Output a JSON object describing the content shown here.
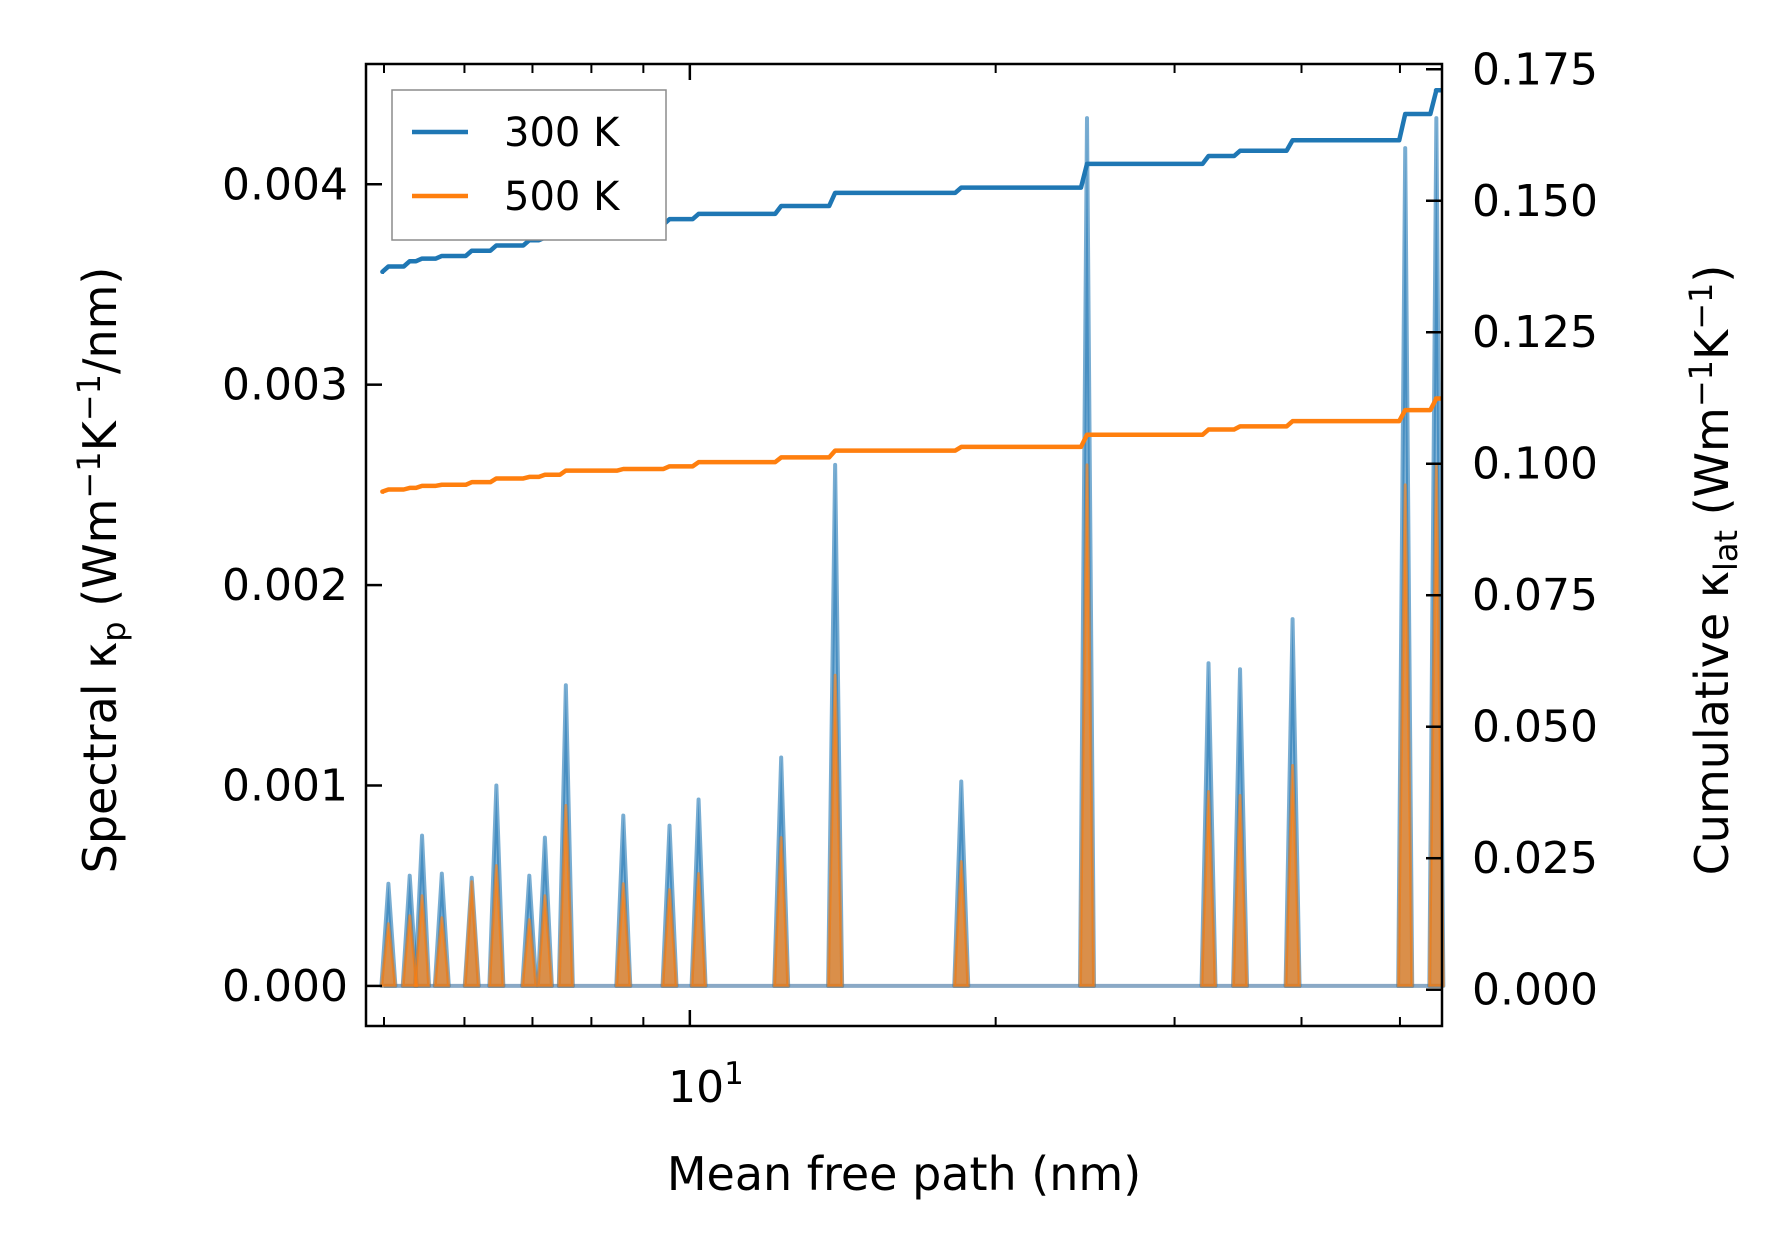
{
  "chart_data": {
    "type": "line",
    "xlabel": "Mean free path (nm)",
    "x_scale": "log",
    "xlim": [
      4.8,
      55
    ],
    "x_major_ticks": [
      10
    ],
    "x_major_tick_labels": [
      "10",
      "1"
    ],
    "ylabel_left": {
      "prefix": "Spectral κ",
      "sub": "p",
      "units": "(Wm",
      "exp1": "−1",
      "k": "K",
      "exp2": "−1",
      "tail": "/nm)"
    },
    "ylabel_right": {
      "prefix": "Cumulative κ",
      "sub": "lat",
      "units": "(Wm",
      "exp1": "−1",
      "k": "K",
      "exp2": "−1",
      "tail": ")"
    },
    "ylim_left": [
      -0.0002,
      0.0046
    ],
    "ylim_right": [
      -0.0069,
      0.176
    ],
    "left_ticks": [
      0.0,
      0.001,
      0.002,
      0.003,
      0.004
    ],
    "left_tick_labels": [
      "0.000",
      "0.001",
      "0.002",
      "0.003",
      "0.004"
    ],
    "right_ticks": [
      0.0,
      0.025,
      0.05,
      0.075,
      0.1,
      0.125,
      0.15,
      0.175
    ],
    "right_tick_labels": [
      "0.000",
      "0.025",
      "0.050",
      "0.075",
      "0.100",
      "0.125",
      "0.150",
      "0.175"
    ],
    "legend": {
      "location": "upper-left",
      "entries": [
        "300 K",
        "500 K"
      ]
    },
    "colors": {
      "c300": "#1f77b4",
      "c500": "#ff7f0e"
    },
    "spectral_peaks": [
      {
        "x": 5.05,
        "k300": 0.00051,
        "k500": 0.00031
      },
      {
        "x": 5.3,
        "k300": 0.00055,
        "k500": 0.00035
      },
      {
        "x": 5.45,
        "k300": 0.00075,
        "k500": 0.00045
      },
      {
        "x": 5.7,
        "k300": 0.00056,
        "k500": 0.00034
      },
      {
        "x": 6.1,
        "k300": 0.00054,
        "k500": 0.00052
      },
      {
        "x": 6.45,
        "k300": 0.001,
        "k500": 0.0006
      },
      {
        "x": 6.95,
        "k300": 0.00055,
        "k500": 0.00033
      },
      {
        "x": 7.2,
        "k300": 0.00074,
        "k500": 0.00045
      },
      {
        "x": 7.55,
        "k300": 0.0015,
        "k500": 0.0009
      },
      {
        "x": 8.6,
        "k300": 0.00085,
        "k500": 0.00051
      },
      {
        "x": 9.55,
        "k300": 0.0008,
        "k500": 0.00048
      },
      {
        "x": 10.2,
        "k300": 0.00093,
        "k500": 0.00056
      },
      {
        "x": 12.3,
        "k300": 0.00114,
        "k500": 0.00074
      },
      {
        "x": 13.9,
        "k300": 0.0026,
        "k500": 0.00155
      },
      {
        "x": 18.5,
        "k300": 0.00102,
        "k500": 0.00062
      },
      {
        "x": 24.6,
        "k300": 0.00433,
        "k500": 0.0026
      },
      {
        "x": 32.4,
        "k300": 0.00161,
        "k500": 0.00097
      },
      {
        "x": 34.8,
        "k300": 0.00158,
        "k500": 0.00095
      },
      {
        "x": 39.2,
        "k300": 0.00183,
        "k500": 0.0011
      },
      {
        "x": 50.6,
        "k300": 0.00418,
        "k500": 0.0025
      },
      {
        "x": 54.3,
        "k300": 0.00433,
        "k500": 0.0026
      }
    ],
    "cumulative_300K": {
      "x": [
        5.0,
        5.05,
        5.3,
        5.45,
        5.7,
        6.1,
        6.45,
        6.95,
        7.2,
        7.55,
        8.6,
        9.55,
        10.2,
        12.3,
        13.9,
        18.5,
        24.6,
        32.4,
        34.8,
        39.2,
        50.6,
        54.3,
        55.0
      ],
      "y": [
        0.1365,
        0.1375,
        0.1385,
        0.139,
        0.1395,
        0.1405,
        0.1415,
        0.1425,
        0.143,
        0.1445,
        0.1455,
        0.1465,
        0.1475,
        0.149,
        0.1515,
        0.1525,
        0.157,
        0.1585,
        0.1595,
        0.1615,
        0.1665,
        0.171,
        0.171
      ]
    },
    "cumulative_500K": {
      "x": [
        5.0,
        5.05,
        5.3,
        5.45,
        5.7,
        6.1,
        6.45,
        6.95,
        7.2,
        7.55,
        8.6,
        9.55,
        10.2,
        12.3,
        13.9,
        18.5,
        24.6,
        32.4,
        34.8,
        39.2,
        50.6,
        54.3,
        55.0
      ],
      "y": [
        0.0947,
        0.0951,
        0.0954,
        0.0958,
        0.096,
        0.0965,
        0.0972,
        0.0975,
        0.0979,
        0.0987,
        0.099,
        0.0995,
        0.1003,
        0.1012,
        0.1025,
        0.1032,
        0.1055,
        0.1065,
        0.1071,
        0.1081,
        0.1102,
        0.1124,
        0.1124
      ]
    }
  }
}
